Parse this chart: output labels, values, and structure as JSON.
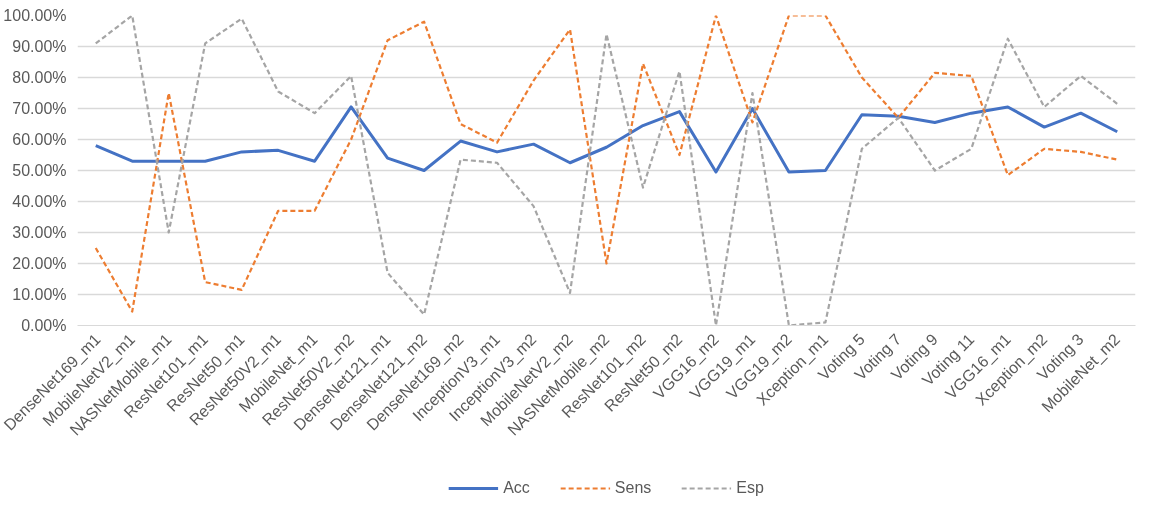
{
  "chart_data": {
    "type": "line",
    "categories": [
      "DenseNet169_m1",
      "MobileNetV2_m1",
      "NASNetMobile_m1",
      "ResNet101_m1",
      "ResNet50_m1",
      "ResNet50V2_m1",
      "MobileNet_m1",
      "ResNet50V2_m2",
      "DenseNet121_m1",
      "DenseNet121_m2",
      "DenseNet169_m2",
      "InceptionV3_m1",
      "InceptionV3_m2",
      "MobileNetV2_m2",
      "NASNetMobile_m2",
      "ResNet101_m2",
      "ResNet50_m2",
      "VGG16_m2",
      "VGG19_m1",
      "VGG19_m2",
      "Xception_m1",
      "Voting 5",
      "Voting 7",
      "Voting 9",
      "Voting 11",
      "VGG16_m1",
      "Xception_m2",
      "Voting 3",
      "MobileNet_m2"
    ],
    "series": [
      {
        "name": "Acc",
        "color": "#4472c4",
        "line_style": "solid",
        "values": [
          58,
          53,
          53,
          53,
          56,
          56.5,
          53,
          70.5,
          54,
          50,
          59.5,
          56,
          58.5,
          52.5,
          57.5,
          64.5,
          69,
          49.5,
          70,
          49.5,
          50,
          68,
          67.5,
          65.5,
          68.5,
          70.5,
          64,
          68.5,
          62.5
        ]
      },
      {
        "name": "Sens",
        "color": "#ed7d31",
        "line_style": "dashed",
        "values": [
          25,
          4.5,
          75,
          14,
          11.5,
          37,
          37,
          60,
          92,
          98,
          65,
          59,
          79,
          95.5,
          20,
          84.5,
          55,
          100,
          65.5,
          100,
          100,
          80,
          67,
          81.5,
          80.5,
          48.5,
          57,
          56,
          53.5
        ]
      },
      {
        "name": "Esp",
        "color": "#a5a5a5",
        "line_style": "dashed",
        "values": [
          91,
          100,
          30,
          91,
          99,
          75.5,
          68.5,
          80.5,
          17,
          3.5,
          53.5,
          52.5,
          38.5,
          10.5,
          94,
          44.5,
          82,
          0,
          75,
          0,
          1,
          57,
          67,
          50,
          57,
          92.5,
          70.5,
          80.5,
          71.5
        ]
      }
    ],
    "ylim": [
      0,
      100
    ],
    "yticks": [
      {
        "value": 0,
        "label": "0.00%"
      },
      {
        "value": 10,
        "label": "10.00%"
      },
      {
        "value": 20,
        "label": "20.00%"
      },
      {
        "value": 30,
        "label": "30.00%"
      },
      {
        "value": 40,
        "label": "40.00%"
      },
      {
        "value": 50,
        "label": "50.00%"
      },
      {
        "value": 60,
        "label": "60.00%"
      },
      {
        "value": 70,
        "label": "70.00%"
      },
      {
        "value": 80,
        "label": "80.00%"
      },
      {
        "value": 90,
        "label": "90.00%"
      },
      {
        "value": 100,
        "label": "100.00%"
      }
    ],
    "grid": "y",
    "legend": "bottom",
    "marker": "none"
  }
}
